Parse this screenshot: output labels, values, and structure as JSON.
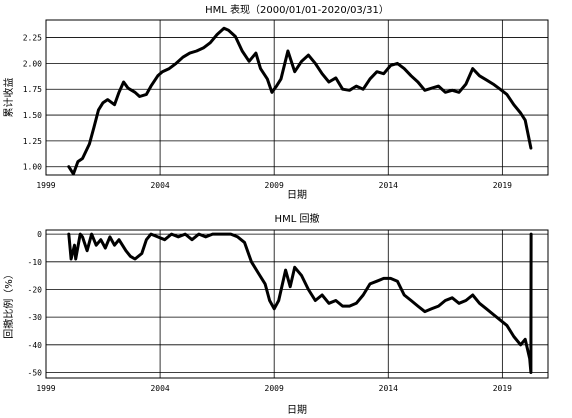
{
  "chart_data": [
    {
      "type": "line",
      "title": "HML 表现（2000/01/01-2020/03/31）",
      "xlabel": "日期",
      "ylabel": "累计收益",
      "xlim": [
        1999,
        2021
      ],
      "ylim": [
        0.92,
        2.42
      ],
      "xticks": [
        1999,
        2004,
        2009,
        2014,
        2019
      ],
      "xtick_labels": [
        "1999",
        "2004",
        "2009",
        "2014",
        "2019"
      ],
      "yticks": [
        1.0,
        1.25,
        1.5,
        1.75,
        2.0,
        2.25
      ],
      "ytick_labels": [
        "1.00",
        "1.25",
        "1.50",
        "1.75",
        "2.00",
        "2.25"
      ],
      "grid": true,
      "series": [
        {
          "name": "累计收益",
          "x": [
            2000.0,
            2000.2,
            2000.4,
            2000.6,
            2000.9,
            2001.1,
            2001.3,
            2001.5,
            2001.7,
            2002.0,
            2002.2,
            2002.4,
            2002.6,
            2002.9,
            2003.1,
            2003.4,
            2003.6,
            2003.9,
            2004.1,
            2004.4,
            2004.7,
            2005.0,
            2005.3,
            2005.6,
            2005.9,
            2006.2,
            2006.5,
            2006.8,
            2007.0,
            2007.3,
            2007.6,
            2007.9,
            2008.2,
            2008.4,
            2008.7,
            2008.9,
            2009.1,
            2009.3,
            2009.6,
            2009.9,
            2010.2,
            2010.5,
            2010.8,
            2011.1,
            2011.4,
            2011.7,
            2012.0,
            2012.3,
            2012.6,
            2012.9,
            2013.2,
            2013.5,
            2013.8,
            2014.1,
            2014.4,
            2014.7,
            2015.0,
            2015.3,
            2015.6,
            2015.9,
            2016.2,
            2016.5,
            2016.8,
            2017.1,
            2017.4,
            2017.7,
            2018.0,
            2018.3,
            2018.6,
            2018.9,
            2019.2,
            2019.5,
            2019.8,
            2020.0,
            2020.25
          ],
          "values": [
            1.0,
            0.93,
            1.05,
            1.08,
            1.22,
            1.38,
            1.55,
            1.62,
            1.65,
            1.6,
            1.72,
            1.82,
            1.76,
            1.72,
            1.68,
            1.7,
            1.78,
            1.88,
            1.92,
            1.95,
            2.0,
            2.06,
            2.1,
            2.12,
            2.15,
            2.2,
            2.28,
            2.34,
            2.32,
            2.26,
            2.12,
            2.02,
            2.1,
            1.95,
            1.85,
            1.72,
            1.78,
            1.85,
            2.12,
            1.92,
            2.02,
            2.08,
            2.0,
            1.9,
            1.82,
            1.86,
            1.75,
            1.74,
            1.78,
            1.75,
            1.85,
            1.92,
            1.9,
            1.98,
            2.0,
            1.95,
            1.88,
            1.82,
            1.74,
            1.76,
            1.78,
            1.72,
            1.74,
            1.72,
            1.8,
            1.95,
            1.88,
            1.84,
            1.8,
            1.75,
            1.7,
            1.6,
            1.52,
            1.45,
            1.18
          ]
        }
      ]
    },
    {
      "type": "line",
      "title": "HML 回撤",
      "xlabel": "日期",
      "ylabel": "回撤比例（%）",
      "xlim": [
        1999,
        2021
      ],
      "ylim": [
        -52,
        1.5
      ],
      "xticks": [
        1999,
        2004,
        2009,
        2014,
        2019
      ],
      "xtick_labels": [
        "1999",
        "2004",
        "2009",
        "2014",
        "2019"
      ],
      "yticks": [
        0,
        -10,
        -20,
        -30,
        -40,
        -50
      ],
      "ytick_labels": [
        "0",
        "-10",
        "-20",
        "-30",
        "-40",
        "-50"
      ],
      "grid": true,
      "series": [
        {
          "name": "回撤比例",
          "x": [
            2000.0,
            2000.1,
            2000.25,
            2000.3,
            2000.5,
            2000.6,
            2000.8,
            2001.0,
            2001.2,
            2001.4,
            2001.6,
            2001.8,
            2002.0,
            2002.2,
            2002.5,
            2002.7,
            2002.9,
            2003.2,
            2003.4,
            2003.6,
            2003.9,
            2004.2,
            2004.5,
            2004.8,
            2005.1,
            2005.4,
            2005.7,
            2006.0,
            2006.3,
            2006.6,
            2006.9,
            2007.1,
            2007.4,
            2007.7,
            2008.0,
            2008.3,
            2008.6,
            2008.8,
            2009.0,
            2009.2,
            2009.5,
            2009.7,
            2009.9,
            2010.2,
            2010.5,
            2010.8,
            2011.1,
            2011.4,
            2011.7,
            2012.0,
            2012.3,
            2012.6,
            2012.9,
            2013.2,
            2013.5,
            2013.8,
            2014.1,
            2014.4,
            2014.7,
            2015.0,
            2015.3,
            2015.6,
            2015.9,
            2016.2,
            2016.5,
            2016.8,
            2017.1,
            2017.4,
            2017.7,
            2018.0,
            2018.3,
            2018.6,
            2018.9,
            2019.2,
            2019.5,
            2019.8,
            2020.0,
            2020.2,
            2020.25,
            2020.26,
            2020.26
          ],
          "values": [
            0,
            -9,
            -4,
            -9,
            0,
            -1,
            -6,
            0,
            -4,
            -2,
            -5,
            -1,
            -4,
            -2,
            -6,
            -8,
            -9,
            -7,
            -2,
            0,
            -1,
            -2,
            0,
            -1,
            0,
            -2,
            0,
            -1,
            0,
            0,
            0,
            0,
            -1,
            -3,
            -10,
            -14,
            -18,
            -24,
            -27,
            -24,
            -13,
            -19,
            -12,
            -15,
            -20,
            -24,
            -22,
            -25,
            -24,
            -26,
            -26,
            -25,
            -22,
            -18,
            -17,
            -16,
            -16,
            -17,
            -22,
            -24,
            -26,
            -28,
            -27,
            -26,
            -24,
            -23,
            -25,
            -24,
            -22,
            -25,
            -27,
            -29,
            -31,
            -33,
            -37,
            -40,
            -38,
            -45,
            -50,
            0,
            0
          ]
        }
      ]
    }
  ]
}
